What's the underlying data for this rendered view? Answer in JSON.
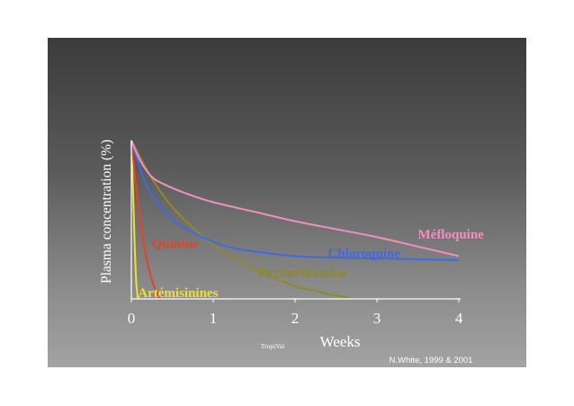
{
  "chart_data": {
    "type": "line",
    "xlabel": "Weeks",
    "ylabel": "Plasma concentration (%)",
    "xlim": [
      0,
      4
    ],
    "ylim": [
      0,
      100
    ],
    "x_ticks": [
      "0",
      "1",
      "2",
      "3",
      "4"
    ],
    "series": [
      {
        "name": "Artémisinines",
        "color": "#f2e02a",
        "x": [
          0,
          0.02,
          0.04,
          0.06,
          0.08
        ],
        "y": [
          100,
          70,
          35,
          10,
          0
        ]
      },
      {
        "name": "Quinine",
        "color": "#e2432c",
        "x": [
          0,
          0.05,
          0.1,
          0.15,
          0.2,
          0.25,
          0.3,
          0.35
        ],
        "y": [
          100,
          75,
          52,
          35,
          22,
          12,
          5,
          0
        ]
      },
      {
        "name": "Pyriméthamine",
        "color": "#8e8a2a",
        "x": [
          0,
          0.25,
          0.5,
          0.75,
          1.0,
          1.25,
          1.5,
          1.75,
          2.0,
          2.25,
          2.5,
          2.65
        ],
        "y": [
          100,
          76,
          58,
          45,
          34,
          26,
          19,
          13,
          8,
          5,
          2,
          1
        ]
      },
      {
        "name": "Chloroquine",
        "color": "#3f6ae0",
        "x": [
          0,
          0.15,
          0.3,
          0.5,
          0.75,
          1.0,
          1.25,
          1.5,
          2.0,
          2.5,
          3.0,
          3.5,
          4.0
        ],
        "y": [
          100,
          76,
          62,
          50,
          42,
          36,
          32,
          30,
          27,
          26,
          25.5,
          25,
          24.5
        ]
      },
      {
        "name": "Méfloquine",
        "color": "#f08fc4",
        "x": [
          0,
          0.1,
          0.2,
          0.3,
          0.5,
          0.75,
          1.0,
          1.5,
          2.0,
          2.5,
          3.0,
          3.5,
          4.0
        ],
        "y": [
          100,
          88,
          80,
          75,
          70,
          65,
          61,
          55,
          49,
          44,
          39,
          33,
          27
        ]
      }
    ],
    "labels": [
      {
        "text": "Méfloquine",
        "series": "Méfloquine",
        "color": "#f08fc4",
        "x": 3.5,
        "y": 38
      },
      {
        "text": "Chloroquine",
        "series": "Chloroquine",
        "color": "#3f6ae0",
        "x": 2.4,
        "y": 26
      },
      {
        "text": "Pyriméthamine",
        "series": "Pyriméthamine",
        "color": "#8e8a2a",
        "x": 1.55,
        "y": 14
      },
      {
        "text": "Quinine",
        "series": "Quinine",
        "color": "#e2432c",
        "x": 0.25,
        "y": 32
      },
      {
        "text": "Artémisinines",
        "series": "Artémisinines",
        "color": "#f2e02a",
        "x": 0.08,
        "y": 1
      }
    ]
  },
  "footer": {
    "watermark": "TropiVal",
    "credit": "N.White, 1999 & 2001"
  },
  "colors": {
    "axis": "#ffffff",
    "background_top": "#3b3b3b",
    "background_bottom": "#a3a3a3"
  }
}
